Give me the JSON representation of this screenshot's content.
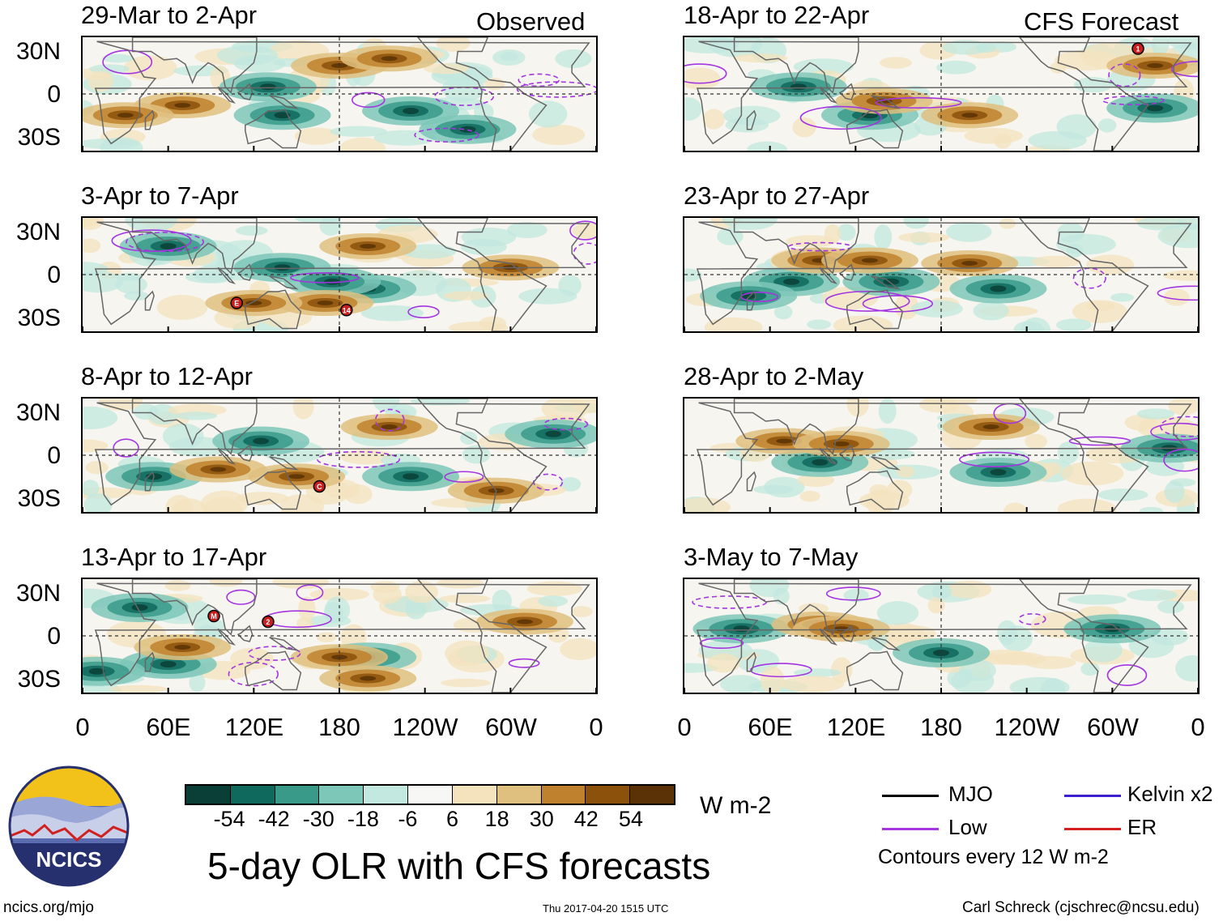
{
  "panels_observed_label": "Observed",
  "panels_forecast_label": "CFS Forecast",
  "panels": [
    {
      "title": "29-Mar to 2-Apr"
    },
    {
      "title": "3-Apr to 7-Apr"
    },
    {
      "title": "8-Apr to 12-Apr"
    },
    {
      "title": "13-Apr to 17-Apr"
    },
    {
      "title": "18-Apr to 22-Apr"
    },
    {
      "title": "23-Apr to 27-Apr"
    },
    {
      "title": "28-Apr to 2-May"
    },
    {
      "title": "3-May to 7-May"
    }
  ],
  "y_ticks": [
    "30N",
    "0",
    "30S"
  ],
  "x_ticks": [
    "0",
    "60E",
    "120E",
    "180",
    "120W",
    "60W",
    "0"
  ],
  "cyclone_markers": {
    "p0": [],
    "p1": [
      "E",
      "14"
    ],
    "p2": [
      "C"
    ],
    "p3": [
      "M",
      "2"
    ],
    "p4": [
      "1"
    ]
  },
  "colorbar": {
    "colors": [
      "#0a3f37",
      "#10695d",
      "#3a9a8a",
      "#7cc7b8",
      "#c2e8df",
      "#f7f7f5",
      "#f4e3bd",
      "#dfc07f",
      "#bf812d",
      "#8c510a",
      "#5a3206"
    ],
    "labels": [
      "-54",
      "-42",
      "-30",
      "-18",
      "-6",
      "6",
      "18",
      "30",
      "42",
      "54"
    ],
    "units": "W m-2"
  },
  "title": "5-day OLR with CFS forecasts",
  "legend": {
    "items": [
      {
        "label": "MJO",
        "color": "#000000"
      },
      {
        "label": "Kelvin x2",
        "color": "#3b1fd0"
      },
      {
        "label": "Low",
        "color": "#a435e0"
      },
      {
        "label": "ER",
        "color": "#d62020"
      }
    ],
    "note": "Contours every 12 W m-2"
  },
  "logo_text": "NCICS",
  "footer": {
    "url": "ncics.org/mjo",
    "timestamp": "Thu 2017-04-20 1515 UTC",
    "author": "Carl Schreck (cjschrec@ncsu.edu)"
  }
}
